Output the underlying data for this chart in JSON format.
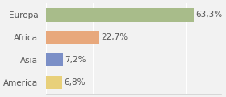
{
  "categories": [
    "Europa",
    "Africa",
    "Asia",
    "America"
  ],
  "values": [
    63.3,
    22.7,
    7.2,
    6.8
  ],
  "labels": [
    "63,3%",
    "22,7%",
    "7,2%",
    "6,8%"
  ],
  "bar_colors": [
    "#a8bc8a",
    "#e8a87c",
    "#7b8fc7",
    "#e8d07a"
  ],
  "background_color": "#f2f2f2",
  "xlim": [
    0,
    75
  ],
  "label_fontsize": 7.5,
  "category_fontsize": 7.5
}
